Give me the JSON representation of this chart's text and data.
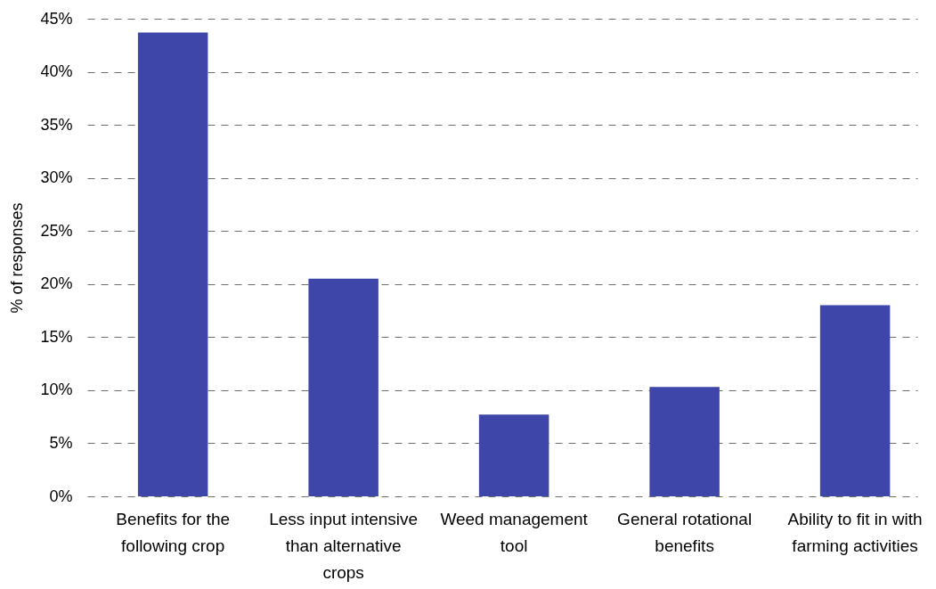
{
  "chart_data": {
    "type": "bar",
    "ylabel": "% of responses",
    "categories": [
      "Benefits for the following crop",
      "Less input intensive than alternative crops",
      "Weed management tool",
      "General rotational benefits",
      "Ability to fit in with farming activities"
    ],
    "values": [
      43.7,
      20.5,
      7.7,
      10.3,
      18.0
    ],
    "color": "#3e46aa",
    "ylim": [
      0,
      45
    ],
    "yticks": [
      {
        "value": 0,
        "label": "0%"
      },
      {
        "value": 5,
        "label": "5%"
      },
      {
        "value": 10,
        "label": "10%"
      },
      {
        "value": 15,
        "label": "15%"
      },
      {
        "value": 20,
        "label": "20%"
      },
      {
        "value": 25,
        "label": "25%"
      },
      {
        "value": 30,
        "label": "30%"
      },
      {
        "value": 35,
        "label": "35%"
      },
      {
        "value": 40,
        "label": "40%"
      },
      {
        "value": 45,
        "label": "45%"
      }
    ],
    "grid": "y"
  }
}
